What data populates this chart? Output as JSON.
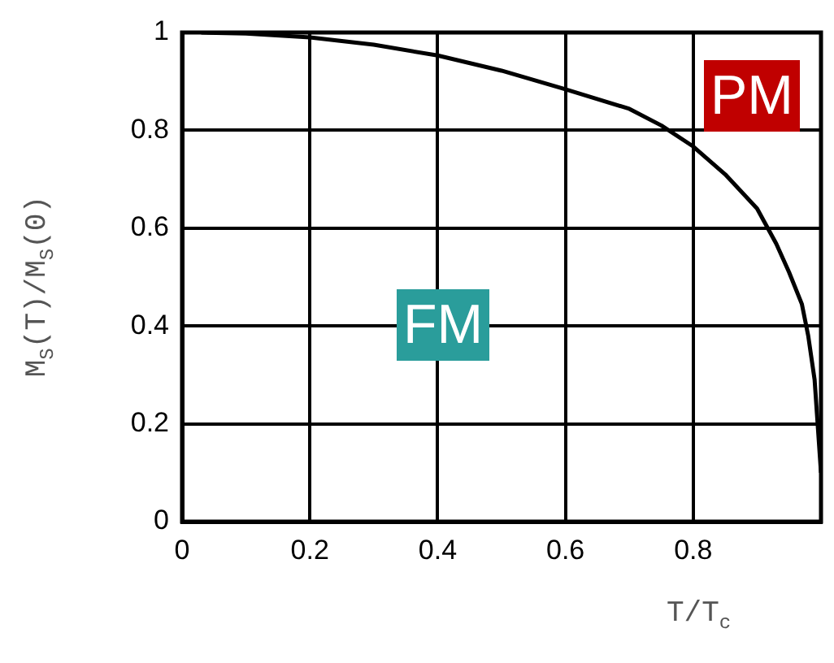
{
  "chart_data": {
    "type": "line",
    "xlabel": "T/T$_{c}$",
    "ylabel": "M$_{S}$(T)/M$_{S}$(0)",
    "x": [
      0.03,
      0.1,
      0.2,
      0.3,
      0.4,
      0.5,
      0.6,
      0.7,
      0.75,
      0.8,
      0.85,
      0.9,
      0.93,
      0.95,
      0.97,
      0.98,
      0.99,
      1.0
    ],
    "series": [
      {
        "color": "#000000",
        "values": [
          1.0,
          0.998,
          0.99,
          0.975,
          0.953,
          0.922,
          0.884,
          0.844,
          0.81,
          0.767,
          0.71,
          0.64,
          0.568,
          0.51,
          0.445,
          0.38,
          0.29,
          0.1
        ]
      }
    ],
    "xlim": [
      0,
      1
    ],
    "ylim": [
      0,
      1
    ],
    "xticks": [
      0,
      0.2,
      0.4,
      0.6,
      0.8,
      {
        "value": 1,
        "label": null
      }
    ],
    "yticks": [
      0,
      0.2,
      0.4,
      0.6,
      0.8,
      1
    ],
    "grid": true,
    "legend": false,
    "marker": "none",
    "line_style": "solid",
    "annotations": [
      "FM",
      "PM"
    ]
  }
}
